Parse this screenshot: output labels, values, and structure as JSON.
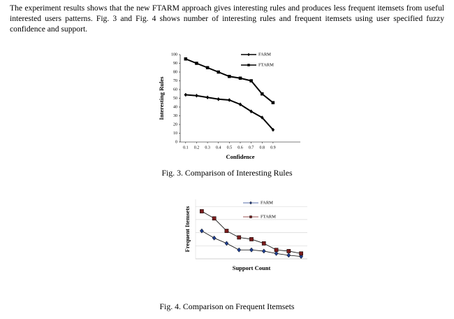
{
  "text": "The experiment results shows that the new FTARM approach gives interesting rules and produces less frequent itemsets from useful interested users patterns. Fig. 3 and Fig. 4 shows number of interesting rules and frequent itemsets using user specified fuzzy confidence and support.",
  "chart_data": [
    {
      "type": "line",
      "caption": "Fig. 3. Comparison of Interesting Rules",
      "x_label": "Confidence",
      "y_label": "Interesting Rules",
      "x": [
        0.1,
        0.2,
        0.3,
        0.4,
        0.5,
        0.6,
        0.7,
        0.8,
        0.9
      ],
      "xlim": [
        0.05,
        1.15
      ],
      "xticks": [
        0.1,
        0.2,
        0.3,
        0.4,
        0.5,
        0.6,
        0.7,
        0.8,
        0.9
      ],
      "ylim": [
        0,
        100
      ],
      "yticks": [
        0,
        10,
        20,
        30,
        40,
        50,
        60,
        70,
        80,
        90,
        100
      ],
      "grid": false,
      "legend": "top right",
      "series": [
        {
          "name": "FARM",
          "color": "#000000",
          "marker": "diamond",
          "values": [
            54,
            53,
            51,
            49,
            48,
            43,
            35,
            28,
            14
          ]
        },
        {
          "name": "FTARM",
          "color": "#000000",
          "marker": "square",
          "values": [
            95,
            90,
            85,
            80,
            75,
            73,
            70,
            55,
            45
          ]
        }
      ]
    },
    {
      "type": "line",
      "caption": "Fig. 4. Comparison on Frequent Itemsets",
      "x_label": "Support Count",
      "y_label": "Frequent Itemsets",
      "categories": [
        null,
        null,
        null,
        null,
        null,
        null,
        null,
        null,
        null
      ],
      "ylim": [
        0,
        100
      ],
      "yticks": [
        0,
        22,
        44,
        66,
        88
      ],
      "tick_labels": false,
      "grid": true,
      "legend": "top right",
      "series": [
        {
          "name": "FARM",
          "color": "#1f3f8f",
          "marker": "diamond",
          "values": [
            47,
            35,
            26,
            15,
            15,
            13,
            9,
            6,
            4
          ]
        },
        {
          "name": "FTARM",
          "color": "#7a1c1c",
          "marker": "square",
          "values": [
            80,
            68,
            47,
            36,
            33,
            26,
            15,
            13,
            9
          ]
        }
      ]
    }
  ]
}
